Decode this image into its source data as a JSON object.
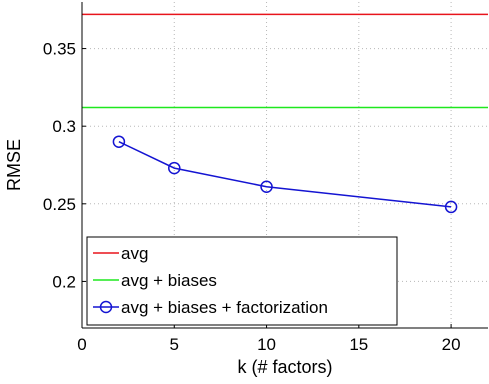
{
  "chart_data": {
    "type": "line",
    "title": "",
    "xlabel": "k (# factors)",
    "ylabel": "RMSE",
    "xlim": [
      0,
      22
    ],
    "ylim": [
      0.17,
      0.38
    ],
    "xticks": [
      0,
      5,
      10,
      15,
      20
    ],
    "yticks": [
      0.2,
      0.25,
      0.3,
      0.35
    ],
    "xtick_labels": [
      "0",
      "5",
      "10",
      "15",
      "20"
    ],
    "ytick_labels": [
      "0.2",
      "0.25",
      "0.3",
      "0.35"
    ],
    "grid": true,
    "legend_position": "bottom-left",
    "series": [
      {
        "name": "avg",
        "kind": "hline",
        "y": 0.372,
        "color": "#e8141c",
        "marker": "none"
      },
      {
        "name": "avg + biases",
        "kind": "hline",
        "y": 0.312,
        "color": "#1ee81e",
        "marker": "none"
      },
      {
        "name": "avg + biases + factorization",
        "kind": "line",
        "x": [
          2,
          5,
          10,
          20
        ],
        "y": [
          0.29,
          0.273,
          0.261,
          0.248
        ],
        "color": "#1414d2",
        "marker": "circle"
      }
    ]
  }
}
